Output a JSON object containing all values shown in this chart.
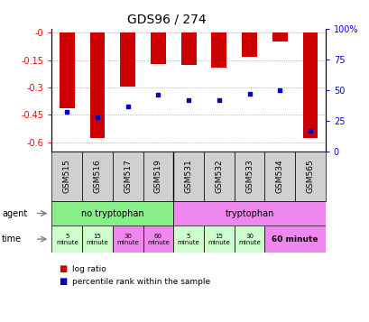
{
  "title": "GDS96 / 274",
  "samples": [
    "GSM515",
    "GSM516",
    "GSM517",
    "GSM519",
    "GSM531",
    "GSM532",
    "GSM533",
    "GSM534",
    "GSM565"
  ],
  "log_ratios": [
    -0.415,
    -0.575,
    -0.295,
    -0.17,
    -0.175,
    -0.19,
    -0.13,
    -0.05,
    -0.575
  ],
  "percentile_ranks": [
    32,
    28,
    37,
    46,
    42,
    42,
    47,
    50,
    17
  ],
  "ylim_left": [
    -0.65,
    0.02
  ],
  "ylim_right": [
    0,
    100
  ],
  "left_ticks": [
    0.0,
    -0.15,
    -0.3,
    -0.45,
    -0.6
  ],
  "right_ticks": [
    0,
    25,
    50,
    75,
    100
  ],
  "agent_no_trp_color": "#88ee88",
  "agent_trp_color": "#ee88ee",
  "time_no_trp_colors": [
    "#ccffcc",
    "#ccffcc",
    "#ee88ee",
    "#ee88ee"
  ],
  "time_trp_colors": [
    "#ccffcc",
    "#ccffcc",
    "#ccffcc",
    "#ee88ee"
  ],
  "bar_color": "#cc0000",
  "dot_color": "#0000cc",
  "background_color": "#ffffff",
  "grid_color": "#888888",
  "plot_bg": "#ffffff"
}
